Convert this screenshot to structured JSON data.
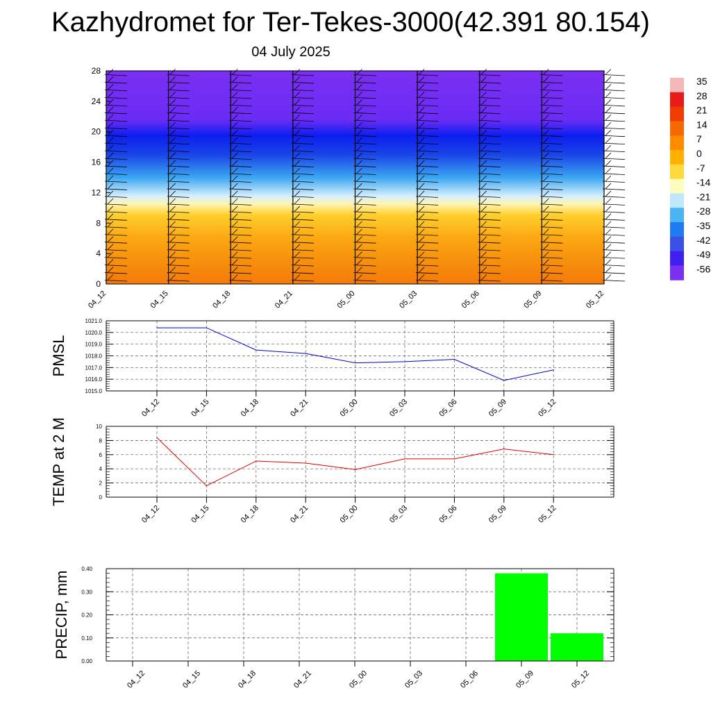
{
  "title": "Kazhydromet for Ter-Tekes-3000(42.391 80.154)",
  "subtitle": "04 July 2025",
  "chart_data": [
    {
      "type": "heatmap",
      "name": "temperature-cross-section",
      "x_ticks": [
        "04_12",
        "04_15",
        "04_18",
        "04_21",
        "05_00",
        "05_03",
        "05_06",
        "05_09",
        "05_12"
      ],
      "y_ticks": [
        "0",
        "4",
        "8",
        "12",
        "16",
        "20",
        "24",
        "28"
      ],
      "ylim": [
        0,
        28
      ],
      "colorbar_labels": [
        "35",
        "28",
        "21",
        "14",
        "7",
        "0",
        "-7",
        "-14",
        "-21",
        "-28",
        "-35",
        "-42",
        "-49",
        "-56"
      ],
      "colorbar_colors": [
        "#f5b8b8",
        "#e81a1a",
        "#f03c00",
        "#f56a00",
        "#ff8c00",
        "#ffb000",
        "#ffd83a",
        "#fffcc0",
        "#bfe8ff",
        "#4ab4f5",
        "#1e7cf0",
        "#3a50e6",
        "#4020f0",
        "#7a30f0"
      ],
      "level_profile": [
        {
          "level": 0,
          "color": "#f57a0a"
        },
        {
          "level": 3,
          "color": "#f7900c"
        },
        {
          "level": 6,
          "color": "#fca713"
        },
        {
          "level": 9,
          "color": "#ffce2a"
        },
        {
          "level": 10.5,
          "color": "#fff4b0"
        },
        {
          "level": 11.5,
          "color": "#d8f0ff"
        },
        {
          "level": 14,
          "color": "#3aa6f2"
        },
        {
          "level": 17,
          "color": "#1a44e8"
        },
        {
          "level": 19.5,
          "color": "#0c1ef0"
        },
        {
          "level": 21.5,
          "color": "#6a2cf5"
        },
        {
          "level": 28,
          "color": "#7b2ff2"
        }
      ],
      "wind_barbs": true
    },
    {
      "type": "line",
      "name": "pmsl",
      "ylabel": "PMSL",
      "x": [
        "04_12",
        "04_15",
        "04_18",
        "04_21",
        "05_00",
        "05_03",
        "05_06",
        "05_09",
        "05_12"
      ],
      "y_ticks": [
        "1015.0",
        "1016.0",
        "1017.0",
        "1018.0",
        "1019.0",
        "1020.0",
        "1021.0"
      ],
      "ylim": [
        1015,
        1021
      ],
      "color": "#0000cc",
      "values": [
        1020.4,
        1020.4,
        1018.5,
        1018.2,
        1017.4,
        1017.5,
        1017.7,
        1015.9,
        1016.8
      ],
      "grid": true
    },
    {
      "type": "line",
      "name": "temp-2m",
      "ylabel": "TEMP at 2 M",
      "x": [
        "04_12",
        "04_15",
        "04_18",
        "04_21",
        "05_00",
        "05_03",
        "05_06",
        "05_09",
        "05_12"
      ],
      "y_ticks": [
        "0",
        "2",
        "4",
        "6",
        "8",
        "10"
      ],
      "ylim": [
        0,
        10
      ],
      "color": "#dd0000",
      "values": [
        8.4,
        1.6,
        5.1,
        4.8,
        3.9,
        5.4,
        5.4,
        6.8,
        6.0
      ],
      "grid": true
    },
    {
      "type": "bar",
      "name": "precip",
      "ylabel": "PRECIP, mm",
      "categories": [
        "04_12",
        "04_15",
        "04_18",
        "04_21",
        "05_00",
        "05_03",
        "05_06",
        "05_09",
        "05_12"
      ],
      "y_ticks": [
        "0.00",
        "0.10",
        "0.20",
        "0.30",
        "0.40"
      ],
      "ylim": [
        0,
        0.4
      ],
      "color": "#00ff00",
      "values": [
        0,
        0,
        0,
        0,
        0,
        0,
        0,
        0.38,
        0.12
      ],
      "grid": true
    }
  ]
}
